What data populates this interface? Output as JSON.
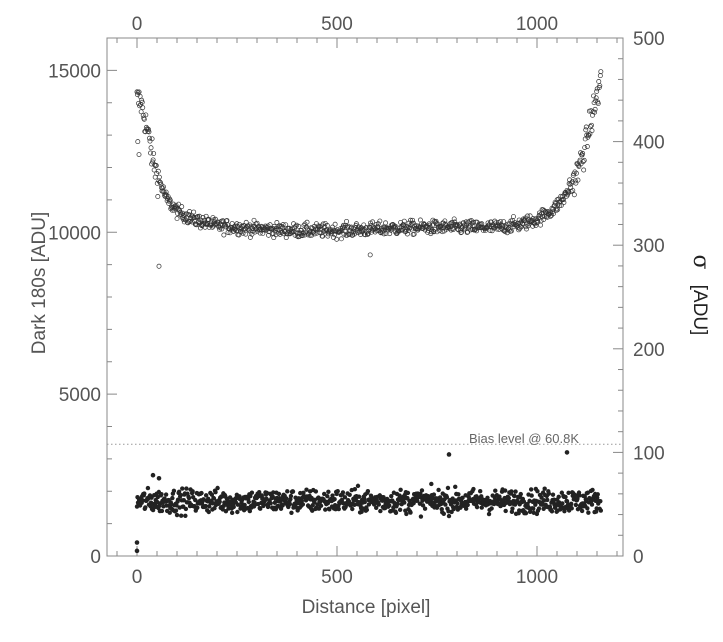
{
  "chart_data": {
    "type": "scatter",
    "title": "",
    "xlabel": "Distance [pixel]",
    "ylabel_left": "Dark 180s [ADU]",
    "ylabel_right_symbol": "σ",
    "ylabel_right_unit": "[ADU]",
    "xlim": [
      -75,
      1215
    ],
    "ylim_left": [
      0,
      16000
    ],
    "ylim_right": [
      0,
      500
    ],
    "x_ticks": [
      "0",
      "500",
      "1000"
    ],
    "x_tick_values": [
      0,
      500,
      1000
    ],
    "x_top_ticks": [
      "0",
      "500",
      "1000"
    ],
    "x_top_tick_values": [
      0,
      500,
      1000
    ],
    "y_left_ticks": [
      "0",
      "5000",
      "10000",
      "15000"
    ],
    "y_left_tick_values": [
      0,
      5000,
      10000,
      15000
    ],
    "y_right_ticks": [
      "0",
      "100",
      "200",
      "300",
      "400",
      "500"
    ],
    "y_right_tick_values": [
      0,
      100,
      200,
      300,
      400,
      500
    ],
    "grid": false,
    "reference_line": {
      "value_left_axis": 3450,
      "style": "dotted",
      "label": "Bias level @ 60.8K"
    },
    "series": [
      {
        "marker": "open-circle",
        "axis": "left",
        "x_range": [
          0,
          1160
        ],
        "profile": [
          [
            0,
            14100
          ],
          [
            10,
            14000
          ],
          [
            25,
            13200
          ],
          [
            40,
            12200
          ],
          [
            55,
            11600
          ],
          [
            75,
            11000
          ],
          [
            100,
            10650
          ],
          [
            140,
            10400
          ],
          [
            200,
            10200
          ],
          [
            300,
            10100
          ],
          [
            400,
            10050
          ],
          [
            500,
            10050
          ],
          [
            600,
            10100
          ],
          [
            700,
            10150
          ],
          [
            800,
            10150
          ],
          [
            900,
            10150
          ],
          [
            960,
            10250
          ],
          [
            1000,
            10400
          ],
          [
            1040,
            10700
          ],
          [
            1070,
            11100
          ],
          [
            1100,
            11800
          ],
          [
            1120,
            12600
          ],
          [
            1140,
            13700
          ],
          [
            1160,
            14700
          ]
        ],
        "scatter_noise": 150,
        "outliers": [
          [
            55,
            8950
          ],
          [
            583,
            9300
          ],
          [
            2,
            12800
          ],
          [
            5,
            12400
          ]
        ]
      },
      {
        "marker": "filled-circle",
        "axis": "right",
        "x_range": [
          0,
          1160
        ],
        "mean": 53,
        "scatter_noise": 8,
        "outliers": [
          [
            0,
            5
          ],
          [
            0,
            13
          ],
          [
            780,
            98
          ],
          [
            1075,
            100
          ],
          [
            40,
            78
          ],
          [
            55,
            75
          ]
        ]
      }
    ]
  }
}
